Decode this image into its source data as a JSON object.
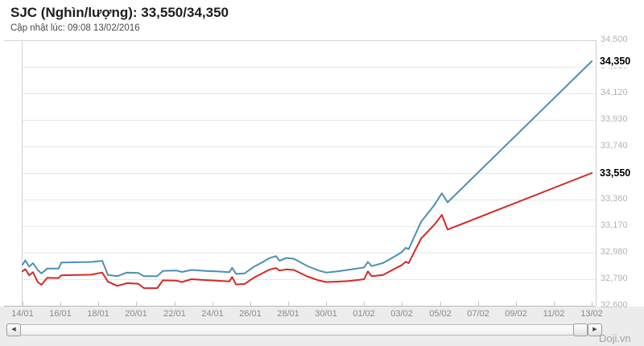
{
  "header": {
    "title": "SJC (Nghìn/lượng): 33,550/34,350",
    "subtitle": "Cập nhật lúc: 09:08 13/02/2016"
  },
  "chart_data": {
    "type": "line",
    "title": "SJC (Nghìn/lượng): 33,550/34,350",
    "unit": "Nghìn/lượng",
    "ylim": [
      32600,
      34500
    ],
    "grid": true,
    "legend_position": "none",
    "y_ticks": [
      {
        "label": "34,500",
        "value": 34500
      },
      {
        "label": "34,310",
        "value": 34310
      },
      {
        "label": "34,120",
        "value": 34120
      },
      {
        "label": "33,930",
        "value": 33930
      },
      {
        "label": "33,740",
        "value": 33740
      },
      {
        "label": "33,550",
        "value": 33550
      },
      {
        "label": "33,360",
        "value": 33360
      },
      {
        "label": "33,170",
        "value": 33170
      },
      {
        "label": "32,980",
        "value": 32980
      },
      {
        "label": "32,790",
        "value": 32790
      },
      {
        "label": "32,600",
        "value": 32600
      }
    ],
    "x_tick_labels": [
      "14/01",
      "16/01",
      "18/01",
      "20/01",
      "22/01",
      "24/01",
      "26/01",
      "28/01",
      "30/01",
      "01/02",
      "03/02",
      "05/02",
      "07/02",
      "09/02",
      "11/02",
      "13/02"
    ],
    "x_days_from_first_tick": [
      0,
      30
    ],
    "series": [
      {
        "name": "34,350",
        "end_label": "34,350",
        "color": "#4d8fb5",
        "points": [
          [
            0,
            32895
          ],
          [
            0.15,
            32925
          ],
          [
            0.35,
            32880
          ],
          [
            0.55,
            32905
          ],
          [
            0.8,
            32855
          ],
          [
            1,
            32832
          ],
          [
            1.3,
            32866
          ],
          [
            1.9,
            32866
          ],
          [
            2.05,
            32910
          ],
          [
            3.6,
            32913
          ],
          [
            4.2,
            32922
          ],
          [
            4.5,
            32820
          ],
          [
            5,
            32812
          ],
          [
            5.5,
            32838
          ],
          [
            6.1,
            32835
          ],
          [
            6.4,
            32812
          ],
          [
            7.1,
            32812
          ],
          [
            7.4,
            32850
          ],
          [
            8.1,
            32852
          ],
          [
            8.4,
            32842
          ],
          [
            8.9,
            32856
          ],
          [
            9.6,
            32850
          ],
          [
            10.3,
            32845
          ],
          [
            10.9,
            32840
          ],
          [
            11.05,
            32872
          ],
          [
            11.25,
            32828
          ],
          [
            11.7,
            32832
          ],
          [
            12.2,
            32880
          ],
          [
            12.6,
            32908
          ],
          [
            13,
            32940
          ],
          [
            13.35,
            32955
          ],
          [
            13.55,
            32922
          ],
          [
            13.9,
            32942
          ],
          [
            14.3,
            32936
          ],
          [
            15,
            32885
          ],
          [
            15.6,
            32852
          ],
          [
            16,
            32838
          ],
          [
            16.6,
            32846
          ],
          [
            17.2,
            32858
          ],
          [
            18,
            32874
          ],
          [
            18.2,
            32914
          ],
          [
            18.4,
            32884
          ],
          [
            19,
            32906
          ],
          [
            19.6,
            32952
          ],
          [
            20,
            32985
          ],
          [
            20.2,
            33015
          ],
          [
            20.35,
            33005
          ],
          [
            21,
            33200
          ],
          [
            21.7,
            33320
          ],
          [
            22.1,
            33405
          ],
          [
            22.4,
            33340
          ],
          [
            30,
            34350
          ]
        ]
      },
      {
        "name": "33,550",
        "end_label": "33,550",
        "color": "#d22a24",
        "points": [
          [
            0,
            32847
          ],
          [
            0.15,
            32862
          ],
          [
            0.35,
            32818
          ],
          [
            0.55,
            32840
          ],
          [
            0.8,
            32770
          ],
          [
            1,
            32750
          ],
          [
            1.3,
            32800
          ],
          [
            1.9,
            32798
          ],
          [
            2.05,
            32818
          ],
          [
            3.6,
            32822
          ],
          [
            4.2,
            32838
          ],
          [
            4.5,
            32772
          ],
          [
            5,
            32742
          ],
          [
            5.5,
            32762
          ],
          [
            6.1,
            32758
          ],
          [
            6.4,
            32726
          ],
          [
            7.1,
            32726
          ],
          [
            7.4,
            32782
          ],
          [
            8.1,
            32780
          ],
          [
            8.4,
            32770
          ],
          [
            8.9,
            32790
          ],
          [
            9.6,
            32784
          ],
          [
            10.3,
            32779
          ],
          [
            10.9,
            32774
          ],
          [
            11.05,
            32806
          ],
          [
            11.25,
            32752
          ],
          [
            11.7,
            32756
          ],
          [
            12.2,
            32802
          ],
          [
            12.6,
            32830
          ],
          [
            13,
            32858
          ],
          [
            13.35,
            32870
          ],
          [
            13.55,
            32852
          ],
          [
            13.9,
            32860
          ],
          [
            14.3,
            32856
          ],
          [
            15,
            32810
          ],
          [
            15.6,
            32782
          ],
          [
            16,
            32770
          ],
          [
            16.6,
            32773
          ],
          [
            17.2,
            32777
          ],
          [
            18,
            32790
          ],
          [
            18.2,
            32846
          ],
          [
            18.4,
            32812
          ],
          [
            19,
            32820
          ],
          [
            19.6,
            32864
          ],
          [
            20,
            32892
          ],
          [
            20.2,
            32915
          ],
          [
            20.35,
            32905
          ],
          [
            21,
            33080
          ],
          [
            21.7,
            33180
          ],
          [
            22.1,
            33250
          ],
          [
            22.4,
            33145
          ],
          [
            30,
            33550
          ]
        ]
      }
    ]
  },
  "colors": {
    "sell_line": "#4d8fb5",
    "buy_line": "#d22a24",
    "grid": "#e7e7e7",
    "axis": "#cfcfcf",
    "y_label": "#b2b2b2",
    "x_label": "#8a8a8a",
    "bottom_band": "#ececec"
  },
  "scrollbar": {
    "left_arrow": "◀",
    "right_arrow": "▶",
    "thumb": ""
  },
  "watermark": "Doji.vn"
}
